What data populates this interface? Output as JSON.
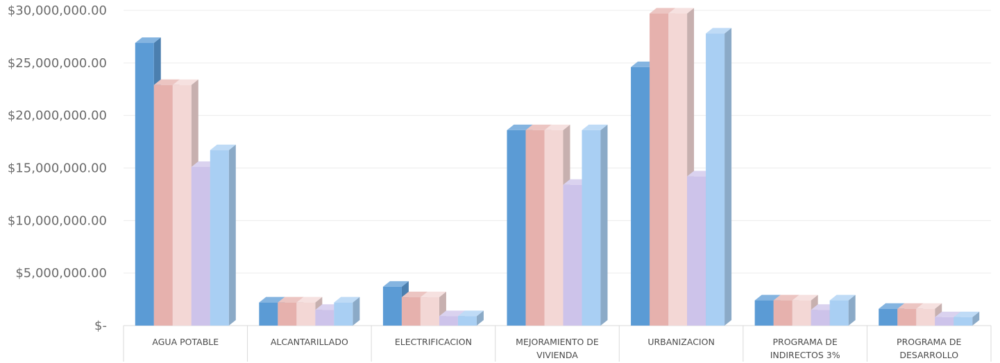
{
  "chart_data": {
    "type": "bar",
    "title": "",
    "xlabel": "",
    "ylabel": "",
    "ylim": [
      0,
      30000000
    ],
    "yticks": [
      0,
      5000000,
      10000000,
      15000000,
      20000000,
      25000000,
      30000000
    ],
    "ytick_labels": [
      "$-",
      "$5,000,000.00",
      "$10,000,000.00",
      "$15,000,000.00",
      "$20,000,000.00",
      "$25,000,000.00",
      "$30,000,000.00"
    ],
    "grid": true,
    "three_d": true,
    "categories": [
      [
        "AGUA POTABLE"
      ],
      [
        "ALCANTARILLADO"
      ],
      [
        "ELECTRIFICACION"
      ],
      [
        "MEJORAMIENTO DE",
        "VIVIENDA"
      ],
      [
        "URBANIZACION"
      ],
      [
        "PROGRAMA DE",
        "INDIRECTOS 3%"
      ],
      [
        "PROGRAMA DE",
        "DESARROLLO"
      ]
    ],
    "series": [
      {
        "color": "#5b9bd5",
        "values": [
          26900000,
          2200000,
          3700000,
          18600000,
          24600000,
          2400000,
          1600000
        ]
      },
      {
        "color": "#e6b1ad",
        "values": [
          22900000,
          2200000,
          2700000,
          18600000,
          29700000,
          2400000,
          1600000
        ]
      },
      {
        "color": "#f3d7d5",
        "values": [
          22900000,
          2200000,
          2700000,
          18600000,
          29700000,
          2400000,
          1600000
        ]
      },
      {
        "color": "#cdc3ea",
        "values": [
          15100000,
          1500000,
          900000,
          13400000,
          14200000,
          1500000,
          800000
        ]
      },
      {
        "color": "#a9cff3",
        "values": [
          16700000,
          2200000,
          900000,
          18600000,
          27800000,
          2400000,
          800000
        ]
      }
    ]
  }
}
